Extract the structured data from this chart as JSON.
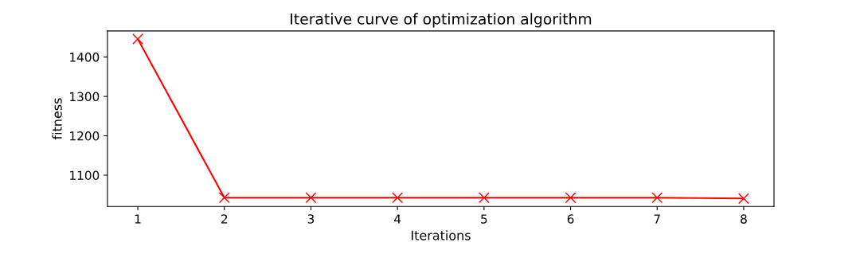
{
  "chart_data": {
    "type": "line",
    "title": "Iterative curve of optimization algorithm",
    "xlabel": "Iterations",
    "ylabel": "fitness",
    "x": [
      1,
      2,
      3,
      4,
      5,
      6,
      7,
      8
    ],
    "series": [
      {
        "color": "#ff0000",
        "values": [
          1446,
          1043,
          1043,
          1043,
          1043,
          1043,
          1043,
          1041
        ]
      }
    ],
    "marker": "cross",
    "line_style": "solid",
    "grid": false,
    "legend": false,
    "xlim": [
      0.65,
      8.35
    ],
    "xticks": [
      1,
      2,
      3,
      4,
      5,
      6,
      7,
      8
    ],
    "ylim": [
      1020.75,
      1466.25
    ],
    "yticks": [
      1100,
      1200,
      1300,
      1400
    ]
  }
}
